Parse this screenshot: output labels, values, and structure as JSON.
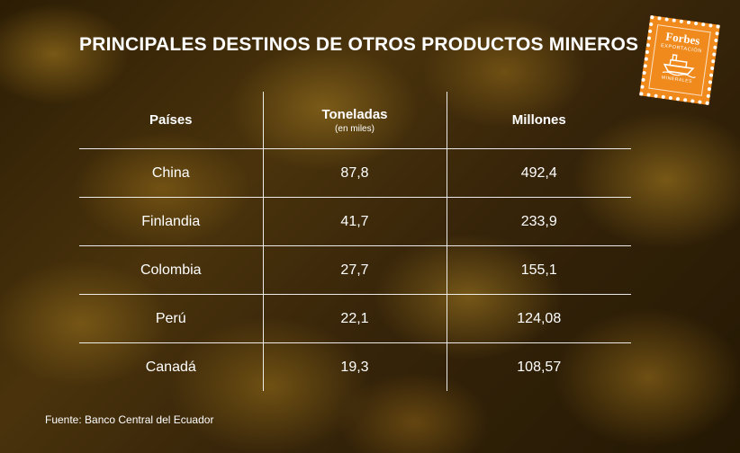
{
  "title": "PRINCIPALES DESTINOS DE OTROS PRODUCTOS MINEROS",
  "logo": {
    "brand": "Forbes",
    "tag_top": "EXPORTACIÓN",
    "tag_bottom": "MINERALES",
    "icon": "cargo-ship-icon",
    "color": "#f08a1c"
  },
  "chart_data": {
    "type": "table",
    "columns": [
      {
        "label": "Países",
        "sublabel": ""
      },
      {
        "label": "Toneladas",
        "sublabel": "(en miles)"
      },
      {
        "label": "Millones",
        "sublabel": ""
      }
    ],
    "rows": [
      {
        "country": "China",
        "toneladas": "87,8",
        "millones": "492,4"
      },
      {
        "country": "Finlandia",
        "toneladas": "41,7",
        "millones": "233,9"
      },
      {
        "country": "Colombia",
        "toneladas": "27,7",
        "millones": "155,1"
      },
      {
        "country": "Perú",
        "toneladas": "22,1",
        "millones": "124,08"
      },
      {
        "country": "Canadá",
        "toneladas": "19,3",
        "millones": "108,57"
      }
    ]
  },
  "source": "Fuente: Banco Central del Ecuador"
}
